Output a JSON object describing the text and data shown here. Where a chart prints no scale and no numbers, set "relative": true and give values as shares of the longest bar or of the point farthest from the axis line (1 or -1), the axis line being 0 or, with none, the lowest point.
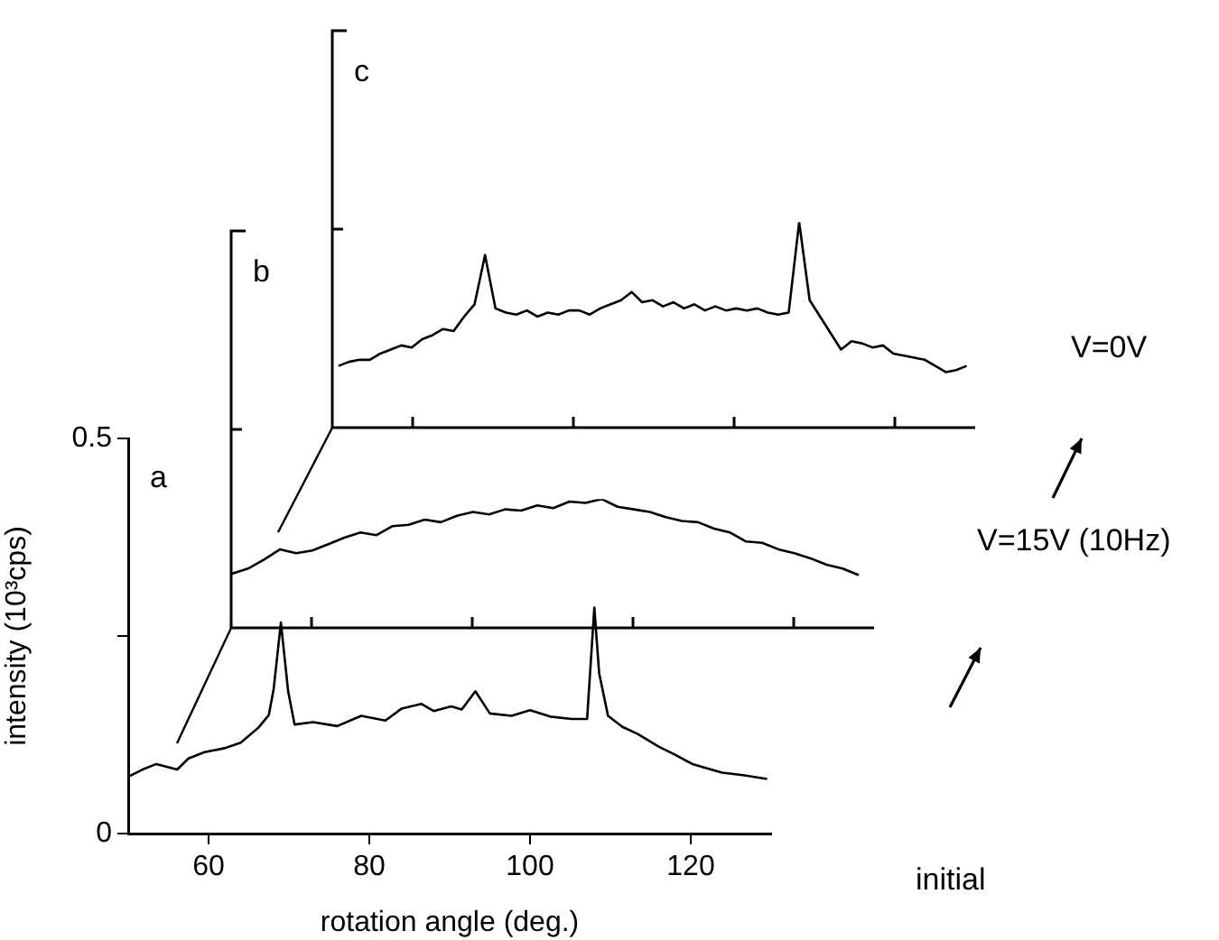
{
  "chart_data": [
    {
      "type": "line",
      "title": "a",
      "xlabel": "rotation angle (deg.)",
      "ylabel": "intensity (10³cps)",
      "xlim": [
        50,
        130
      ],
      "xticks": [
        60,
        80,
        100,
        120
      ],
      "ylim": [
        0,
        0.5
      ],
      "yticks": [
        0,
        {
          "value": 0.25,
          "label": null
        },
        0.5
      ],
      "annotations": [
        "initial"
      ],
      "series": [
        {
          "color": "#000000",
          "x": [
            50.2,
            52,
            53.5,
            55,
            56.1,
            57.5,
            59.5,
            62,
            64,
            66.2,
            67.5,
            68.1,
            69,
            69.9,
            70.7,
            73,
            76,
            79,
            82,
            84,
            86.5,
            88,
            90.2,
            91.5,
            93.2,
            95,
            97.7,
            100,
            102.5,
            105.2,
            107.1,
            108,
            108.6,
            109.7,
            111.5,
            113.4,
            116,
            118,
            120.2,
            123.9,
            126.5,
            129.5
          ],
          "values": [
            0.073,
            0.082,
            0.088,
            0.084,
            0.081,
            0.095,
            0.103,
            0.108,
            0.115,
            0.134,
            0.15,
            0.183,
            0.267,
            0.18,
            0.138,
            0.141,
            0.136,
            0.149,
            0.143,
            0.158,
            0.164,
            0.155,
            0.161,
            0.157,
            0.18,
            0.152,
            0.149,
            0.156,
            0.148,
            0.145,
            0.145,
            0.286,
            0.203,
            0.149,
            0.135,
            0.126,
            0.11,
            0.1,
            0.088,
            0.077,
            0.074,
            0.069
          ]
        }
      ]
    },
    {
      "type": "line",
      "title": "b",
      "relative": true,
      "categories": [
        null,
        null,
        null,
        null,
        null,
        null,
        null,
        null,
        null,
        null,
        null,
        null,
        null,
        null,
        null,
        null,
        null,
        null,
        null,
        null,
        null,
        null,
        null,
        null,
        null,
        null,
        null,
        null,
        null,
        null,
        null,
        null,
        null,
        null,
        null,
        null,
        null,
        null,
        null,
        null
      ],
      "annotations": [
        "V=15V (10Hz)"
      ],
      "series": [
        {
          "color": "#000000",
          "values": [
            0.42,
            0.46,
            0.53,
            0.61,
            0.58,
            0.6,
            0.65,
            0.7,
            0.74,
            0.72,
            0.79,
            0.8,
            0.84,
            0.82,
            0.87,
            0.9,
            0.88,
            0.92,
            0.91,
            0.95,
            0.93,
            0.98,
            0.97,
            1,
            0.94,
            0.92,
            0.9,
            0.86,
            0.83,
            0.82,
            0.77,
            0.74,
            0.67,
            0.66,
            0.61,
            0.58,
            0.54,
            0.49,
            0.46,
            0.41
          ]
        }
      ]
    },
    {
      "type": "line",
      "title": "c",
      "relative": true,
      "categories": [
        null,
        null,
        null,
        null,
        null,
        null,
        null,
        null,
        null,
        null,
        null,
        null,
        null,
        null,
        null,
        null,
        null,
        null,
        null,
        null,
        null,
        null,
        null,
        null,
        null,
        null,
        null,
        null,
        null,
        null,
        null,
        null,
        null,
        null,
        null,
        null,
        null,
        null,
        null,
        null,
        null,
        null,
        null,
        null,
        null,
        null,
        null,
        null,
        null,
        null,
        null,
        null,
        null,
        null,
        null,
        null,
        null,
        null,
        null,
        null,
        null
      ],
      "annotations": [
        "V=0V"
      ],
      "series": [
        {
          "color": "#000000",
          "values": [
            0.3,
            0.32,
            0.33,
            0.33,
            0.36,
            0.38,
            0.4,
            0.39,
            0.43,
            0.45,
            0.48,
            0.47,
            0.54,
            0.6,
            0.84,
            0.58,
            0.56,
            0.55,
            0.57,
            0.54,
            0.56,
            0.55,
            0.57,
            0.57,
            0.55,
            0.58,
            0.6,
            0.62,
            0.66,
            0.61,
            0.62,
            0.59,
            0.61,
            0.58,
            0.6,
            0.57,
            0.59,
            0.57,
            0.58,
            0.57,
            0.58,
            0.56,
            0.55,
            0.56,
            1,
            0.62,
            0.54,
            0.46,
            0.38,
            0.42,
            0.41,
            0.39,
            0.4,
            0.36,
            0.35,
            0.34,
            0.33,
            0.3,
            0.27,
            0.28,
            0.3
          ]
        }
      ]
    }
  ]
}
